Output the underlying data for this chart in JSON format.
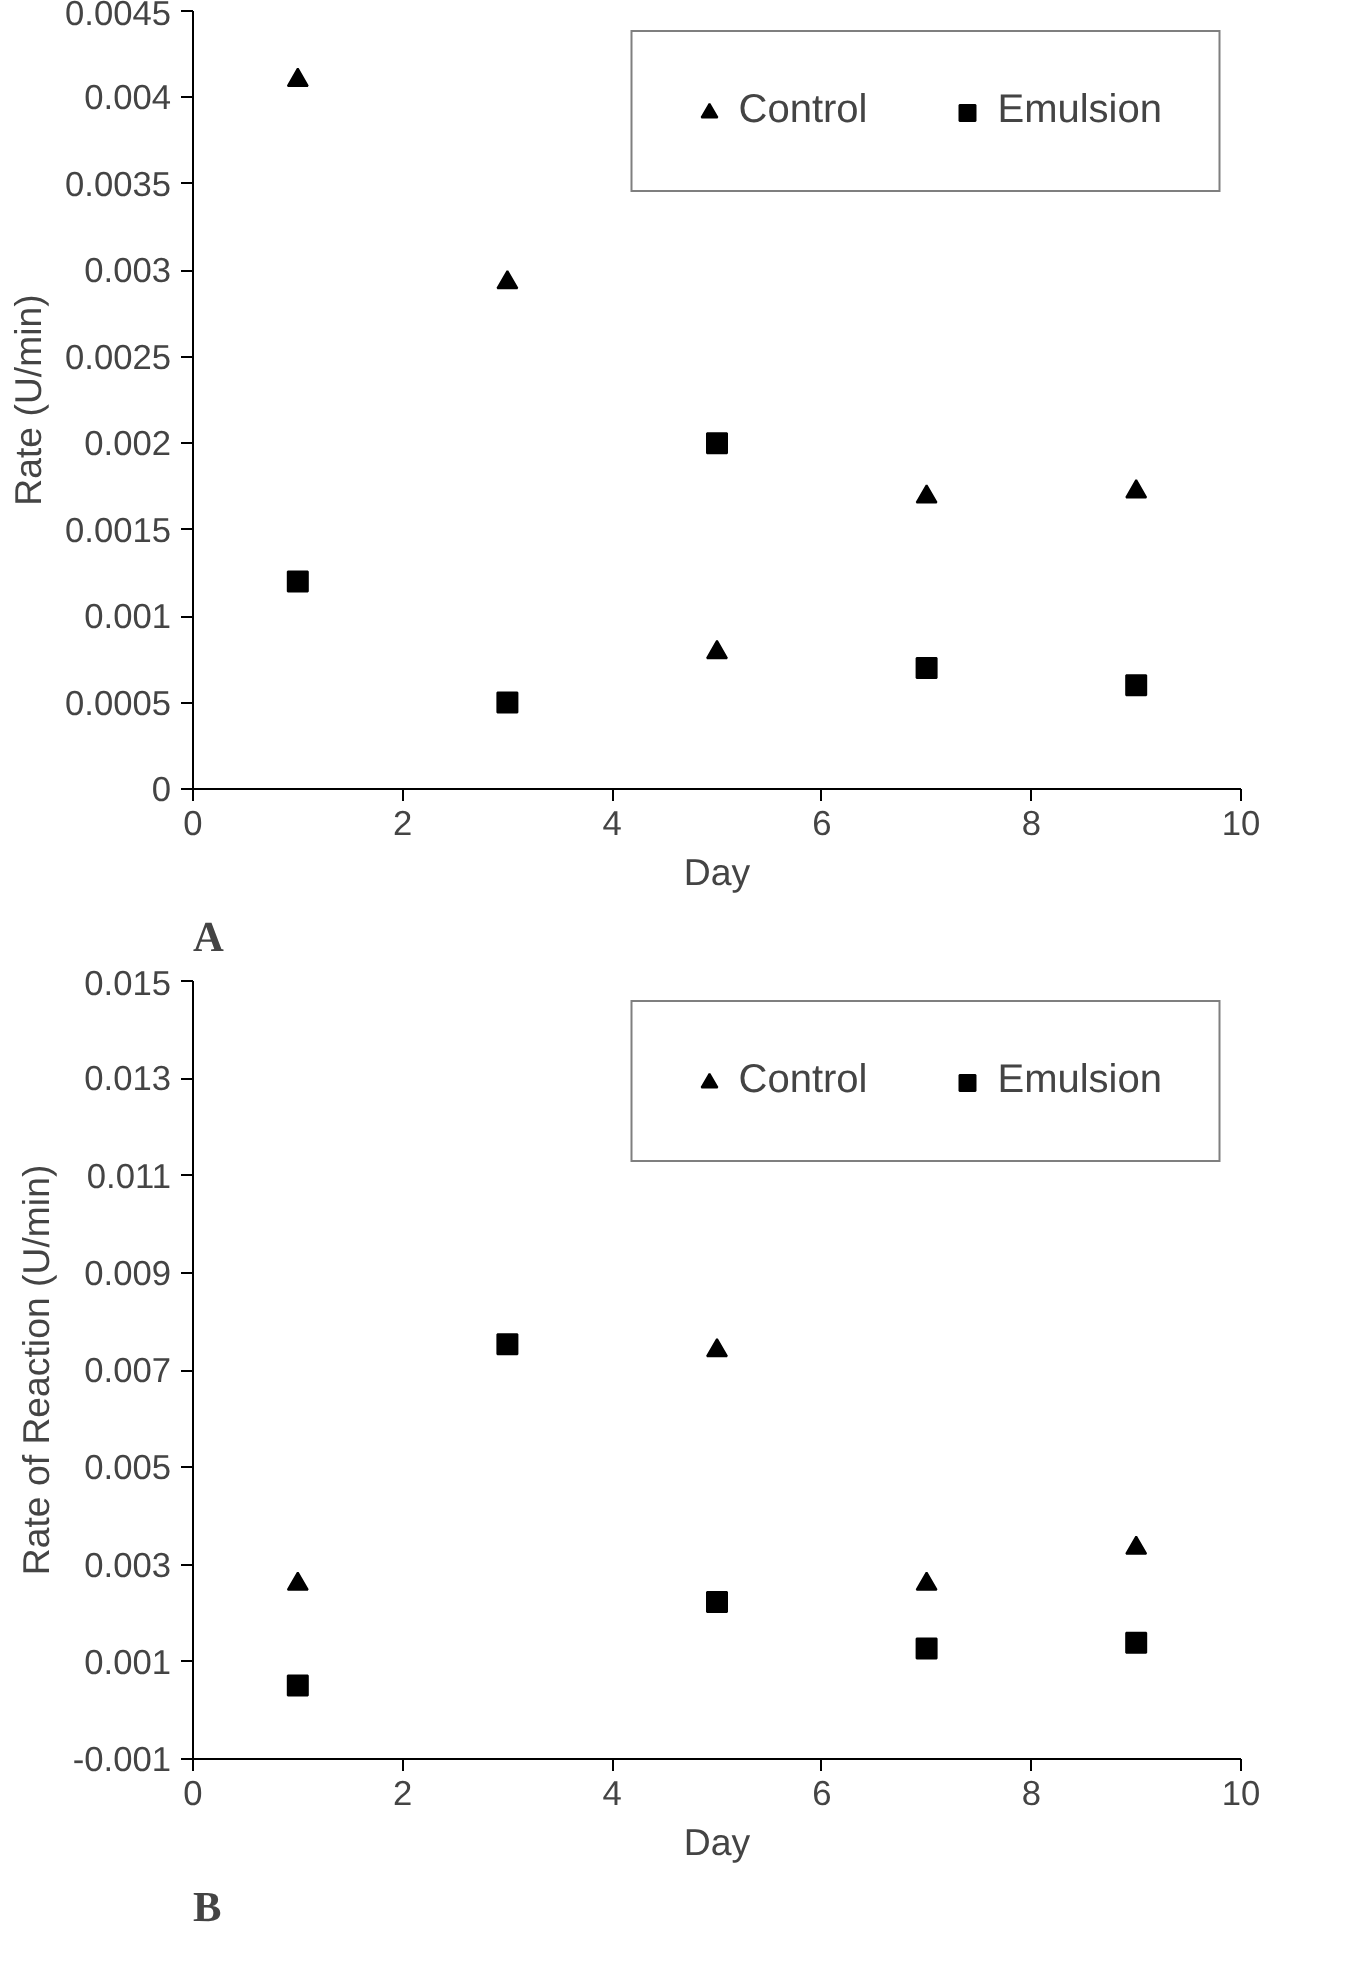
{
  "chart_data": [
    {
      "type": "scatter",
      "xlabel": "Day",
      "ylabel": "Rate (U/min)",
      "annotations": [
        "A"
      ],
      "x": [
        1,
        3,
        5,
        7,
        9
      ],
      "xlim": [
        0,
        10
      ],
      "xticks": [
        0,
        2,
        4,
        6,
        8,
        10
      ],
      "ylim": [
        0,
        0.0045
      ],
      "yticks": [
        0,
        0.0005,
        0.001,
        0.0015,
        0.002,
        0.0025,
        0.003,
        0.0035,
        0.004,
        0.0045
      ],
      "grid": false,
      "legend": "top right",
      "series": [
        {
          "name": "Control",
          "color": "#000000",
          "marker": "triangle",
          "values": [
            0.0041,
            0.00293,
            0.00079,
            0.00169,
            0.00172
          ]
        },
        {
          "name": "Emulsion",
          "color": "#000000",
          "marker": "square",
          "values": [
            0.0012,
            0.0005,
            0.002,
            0.0007,
            0.0006
          ]
        }
      ]
    },
    {
      "type": "scatter",
      "xlabel": "Day",
      "ylabel": "Rate of Reaction (U/min)",
      "annotations": [
        "B"
      ],
      "x": [
        1,
        3,
        5,
        7,
        9
      ],
      "xlim": [
        0,
        10
      ],
      "xticks": [
        0,
        2,
        4,
        6,
        8,
        10
      ],
      "ylim": [
        -0.001,
        0.015
      ],
      "yticks": [
        -0.001,
        0.001,
        0.003,
        0.005,
        0.007,
        0.009,
        0.011,
        0.013,
        0.015
      ],
      "grid": false,
      "legend": "top right",
      "series": [
        {
          "name": "Control",
          "color": "#000000",
          "marker": "triangle",
          "values": [
            0.0026,
            null,
            0.0074,
            0.0026,
            0.00334
          ]
        },
        {
          "name": "Emulsion",
          "color": "#000000",
          "marker": "square",
          "values": [
            0.00051,
            0.00753,
            0.00223,
            0.00127,
            0.00139
          ]
        }
      ]
    }
  ]
}
